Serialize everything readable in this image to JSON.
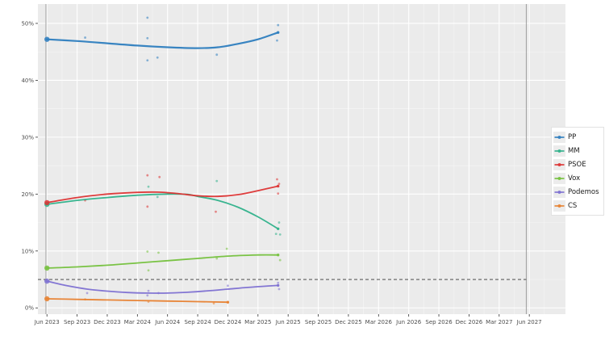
{
  "figure": {
    "background": "#ffffff",
    "panel_background": "#ebebeb",
    "grid_major_color": "#ffffff",
    "grid_minor_color": "#f4f4f4",
    "axis_text_color": "#4d4d4d",
    "tick_mark_color": "#333333",
    "event_line_color": "#9e9e9e",
    "threshold_color": "#333333",
    "legend_key_background": "#ececec",
    "legend_border_color": "#e2e2e2"
  },
  "chart_data": {
    "type": "line",
    "title": "",
    "xlabel": "",
    "ylabel": "",
    "x_unit": "months_since_jun_2023",
    "x_range_months": [
      -0.9,
      51.6
    ],
    "y_range": [
      -1.1,
      53.4
    ],
    "grid": true,
    "legend_position": "right",
    "x_ticks": [
      {
        "m": 0,
        "label": "Jun 2023"
      },
      {
        "m": 3,
        "label": "Sep 2023"
      },
      {
        "m": 6,
        "label": "Dec 2023"
      },
      {
        "m": 9,
        "label": "Mar 2024"
      },
      {
        "m": 12,
        "label": "Jun 2024"
      },
      {
        "m": 15,
        "label": "Sep 2024"
      },
      {
        "m": 18,
        "label": "Dec 2024"
      },
      {
        "m": 21,
        "label": "Mar 2025"
      },
      {
        "m": 24,
        "label": "Jun 2025"
      },
      {
        "m": 27,
        "label": "Sep 2025"
      },
      {
        "m": 30,
        "label": "Dec 2025"
      },
      {
        "m": 33,
        "label": "Mar 2026"
      },
      {
        "m": 36,
        "label": "Jun 2026"
      },
      {
        "m": 39,
        "label": "Sep 2026"
      },
      {
        "m": 42,
        "label": "Dec 2026"
      },
      {
        "m": 45,
        "label": "Mar 2027"
      },
      {
        "m": 48,
        "label": "Jun 2027"
      }
    ],
    "y_ticks": [
      {
        "v": 0,
        "label": "0%"
      },
      {
        "v": 10,
        "label": "10%"
      },
      {
        "v": 20,
        "label": "20%"
      },
      {
        "v": 30,
        "label": "30%"
      },
      {
        "v": 40,
        "label": "40%"
      },
      {
        "v": 50,
        "label": "50%"
      }
    ],
    "threshold_line": {
      "value": 5,
      "style": "dashed",
      "color": "#333333",
      "from_month": -0.9,
      "to_month": 47.7
    },
    "event_lines": [
      {
        "month": -0.1
      },
      {
        "month": 47.7
      }
    ],
    "series": [
      {
        "name": "PP",
        "color": "#2e7ebf",
        "line_width": 2.2,
        "election_result": {
          "month": 0,
          "value": 47.2
        },
        "trend": [
          [
            0,
            47.2
          ],
          [
            3,
            46.9
          ],
          [
            6,
            46.5
          ],
          [
            9,
            46.1
          ],
          [
            12,
            45.8
          ],
          [
            15,
            45.65
          ],
          [
            17,
            45.8
          ],
          [
            19,
            46.4
          ],
          [
            21,
            47.2
          ],
          [
            23,
            48.4
          ]
        ],
        "polls": [
          [
            3.8,
            47.5
          ],
          [
            10,
            51.0
          ],
          [
            10,
            47.4
          ],
          [
            10,
            43.5
          ],
          [
            11,
            44.0
          ],
          [
            16.9,
            44.5
          ],
          [
            23,
            49.7
          ],
          [
            22.9,
            47.0
          ]
        ]
      },
      {
        "name": "MM",
        "color": "#2eb18a",
        "line_width": 1.8,
        "election_result": {
          "month": 0,
          "value": 18.2
        },
        "trend": [
          [
            0,
            18.2
          ],
          [
            3,
            18.9
          ],
          [
            6,
            19.4
          ],
          [
            9,
            19.8
          ],
          [
            12,
            20.0
          ],
          [
            14,
            19.95
          ],
          [
            15,
            19.6
          ],
          [
            17,
            18.9
          ],
          [
            19,
            17.7
          ],
          [
            21,
            16.0
          ],
          [
            23,
            13.9
          ]
        ],
        "polls": [
          [
            10.1,
            21.3
          ],
          [
            11,
            19.5
          ],
          [
            16.9,
            22.3
          ],
          [
            23.1,
            15.0
          ],
          [
            22.8,
            13.0
          ],
          [
            23.2,
            12.9
          ]
        ]
      },
      {
        "name": "PSOE",
        "color": "#dd3333",
        "line_width": 1.8,
        "election_result": {
          "month": 0,
          "value": 18.5
        },
        "trend": [
          [
            0,
            18.5
          ],
          [
            3,
            19.4
          ],
          [
            6,
            20.0
          ],
          [
            9,
            20.3
          ],
          [
            11,
            20.35
          ],
          [
            13,
            20.1
          ],
          [
            15,
            19.7
          ],
          [
            17,
            19.6
          ],
          [
            19,
            19.9
          ],
          [
            21,
            20.6
          ],
          [
            23,
            21.4
          ]
        ],
        "polls": [
          [
            3.8,
            18.9
          ],
          [
            10,
            23.3
          ],
          [
            11.2,
            23.0
          ],
          [
            10,
            17.8
          ],
          [
            16.8,
            16.9
          ],
          [
            22.9,
            22.6
          ],
          [
            23.1,
            21.8
          ],
          [
            23,
            20.1
          ]
        ]
      },
      {
        "name": "Vox",
        "color": "#74c13c",
        "line_width": 1.8,
        "election_result": {
          "month": 0,
          "value": 7.0
        },
        "trend": [
          [
            0,
            7.0
          ],
          [
            3,
            7.2
          ],
          [
            6,
            7.5
          ],
          [
            9,
            7.9
          ],
          [
            12,
            8.3
          ],
          [
            15,
            8.7
          ],
          [
            18,
            9.1
          ],
          [
            21,
            9.3
          ],
          [
            23,
            9.3
          ]
        ],
        "polls": [
          [
            10,
            9.9
          ],
          [
            11.1,
            9.7
          ],
          [
            10.1,
            6.6
          ],
          [
            16.9,
            8.7
          ],
          [
            17.9,
            10.4
          ],
          [
            23.2,
            8.4
          ]
        ]
      },
      {
        "name": "Podemos",
        "color": "#7d70d2",
        "line_width": 1.8,
        "election_result": {
          "month": 0,
          "value": 4.7
        },
        "trend": [
          [
            0,
            4.7
          ],
          [
            2,
            3.9
          ],
          [
            4,
            3.3
          ],
          [
            6,
            2.95
          ],
          [
            8,
            2.7
          ],
          [
            10,
            2.6
          ],
          [
            12,
            2.6
          ],
          [
            14,
            2.75
          ],
          [
            16,
            3.0
          ],
          [
            18,
            3.3
          ],
          [
            20,
            3.6
          ],
          [
            22,
            3.85
          ],
          [
            23,
            3.95
          ]
        ],
        "polls": [
          [
            4,
            2.6
          ],
          [
            10.1,
            3.0
          ],
          [
            11.1,
            2.6
          ],
          [
            10,
            2.2
          ],
          [
            18,
            3.9
          ],
          [
            23,
            4.4
          ],
          [
            23.1,
            3.3
          ]
        ]
      },
      {
        "name": "CS",
        "color": "#e8802e",
        "line_width": 1.8,
        "election_result": {
          "month": 0,
          "value": 1.6
        },
        "trend": [
          [
            0,
            1.6
          ],
          [
            3,
            1.5
          ],
          [
            6,
            1.4
          ],
          [
            9,
            1.3
          ],
          [
            12,
            1.2
          ],
          [
            15,
            1.1
          ],
          [
            18,
            1.0
          ]
        ],
        "polls": [
          [
            3.8,
            1.5
          ],
          [
            10.1,
            1.1
          ],
          [
            16.6,
            0.8
          ]
        ]
      }
    ]
  }
}
